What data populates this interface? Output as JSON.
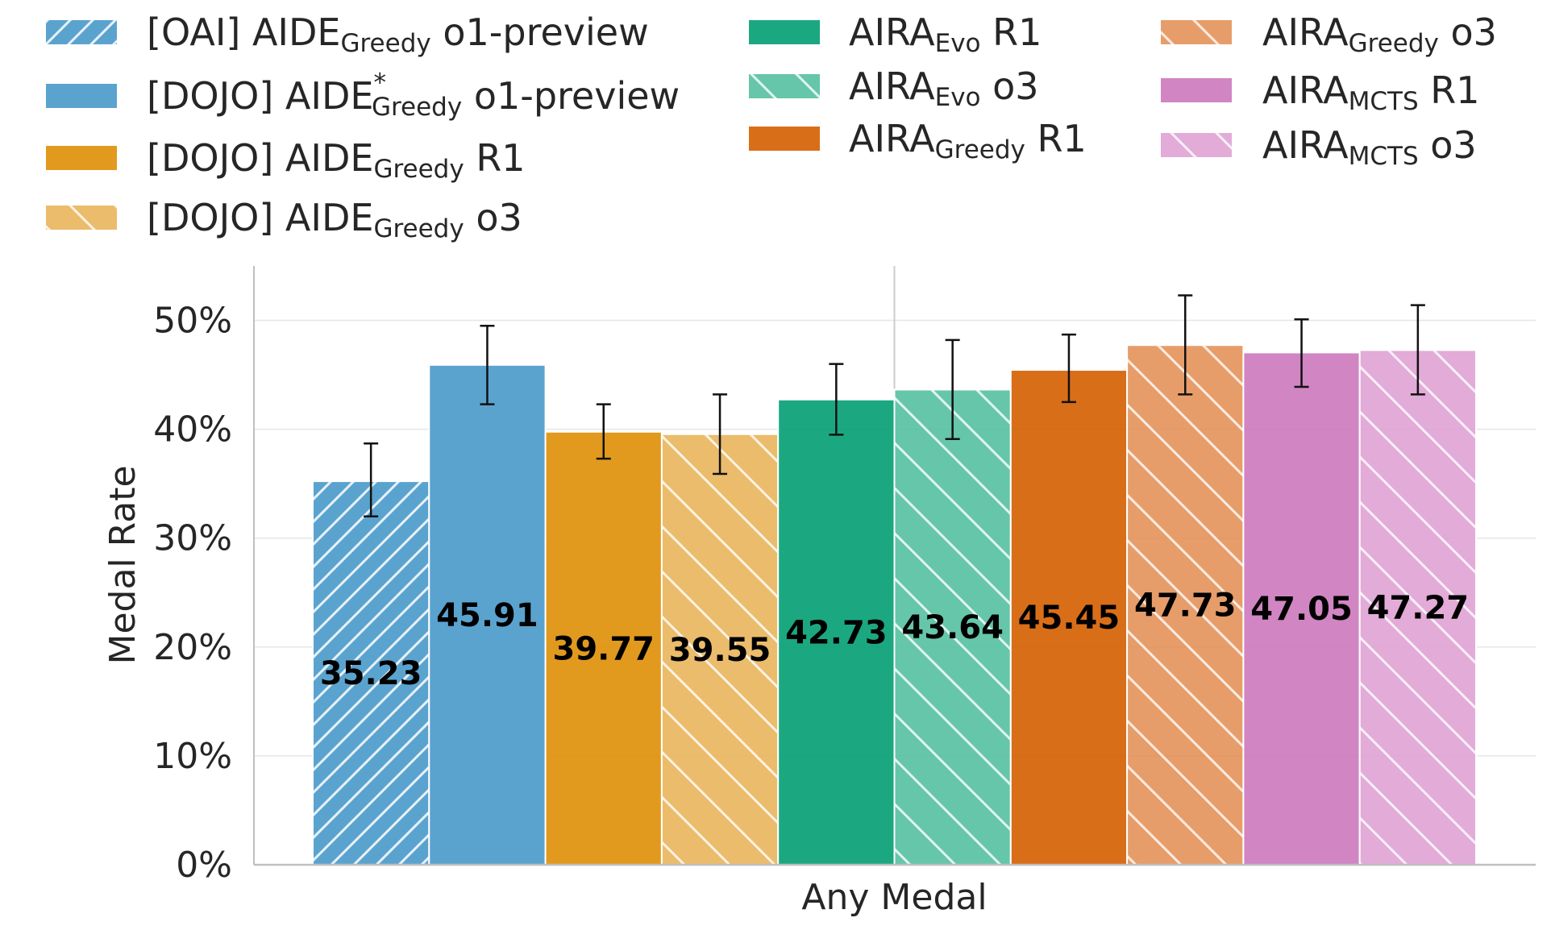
{
  "chart_data": {
    "type": "bar",
    "categories": [
      "Any Medal"
    ],
    "xlabel": "Any Medal",
    "ylabel": "Medal Rate",
    "ylim": [
      0,
      55
    ],
    "yticks": [
      0,
      10,
      20,
      30,
      40,
      50
    ],
    "ytick_suffix": "%",
    "grid": true,
    "legend_position": "top",
    "series": [
      {
        "name": "[OAI] AIDE Greedy o1-preview",
        "prefix": "[OAI] AIDE",
        "sub": "Greedy",
        "sup": "",
        "suffix": " o1-preview",
        "value": 35.23,
        "label": "35.23",
        "err_low": 32.0,
        "err_high": 38.7,
        "color": "#5ba3cf",
        "alpha": 1.0,
        "hatch": "fwd"
      },
      {
        "name": "[DOJO] AIDE* Greedy o1-preview",
        "prefix": "[DOJO] AIDE",
        "sub": "Greedy",
        "sup": "*",
        "suffix": " o1-preview",
        "value": 45.91,
        "label": "45.91",
        "err_low": 42.3,
        "err_high": 49.5,
        "color": "#5ba3cf",
        "alpha": 1.0,
        "hatch": "none"
      },
      {
        "name": "[DOJO] AIDE Greedy R1",
        "prefix": "[DOJO] AIDE",
        "sub": "Greedy",
        "sup": "",
        "suffix": " R1",
        "value": 39.77,
        "label": "39.77",
        "err_low": 37.3,
        "err_high": 42.3,
        "color": "#de8f05",
        "alpha": 0.9,
        "hatch": "none"
      },
      {
        "name": "[DOJO] AIDE Greedy o3",
        "prefix": "[DOJO] AIDE",
        "sub": "Greedy",
        "sup": "",
        "suffix": " o3",
        "value": 39.55,
        "label": "39.55",
        "err_low": 35.9,
        "err_high": 43.2,
        "color": "#e9b55c",
        "alpha": 0.9,
        "hatch": "back"
      },
      {
        "name": "AIRA Evo R1",
        "prefix": "AIRA",
        "sub": "Evo",
        "sup": "",
        "suffix": " R1",
        "value": 42.73,
        "label": "42.73",
        "err_low": 39.5,
        "err_high": 46.0,
        "color": "#029e73",
        "alpha": 0.9,
        "hatch": "none"
      },
      {
        "name": "AIRA Evo o3",
        "prefix": "AIRA",
        "sub": "Evo",
        "sup": "",
        "suffix": " o3",
        "value": 43.64,
        "label": "43.64",
        "err_low": 39.1,
        "err_high": 48.2,
        "color": "#55c0a0",
        "alpha": 0.9,
        "hatch": "back"
      },
      {
        "name": "AIRA Greedy R1",
        "prefix": "AIRA",
        "sub": "Greedy",
        "sup": "",
        "suffix": " R1",
        "value": 45.45,
        "label": "45.45",
        "err_low": 42.5,
        "err_high": 48.7,
        "color": "#d55e00",
        "alpha": 0.9,
        "hatch": "none"
      },
      {
        "name": "AIRA Greedy o3",
        "prefix": "AIRA",
        "sub": "Greedy",
        "sup": "",
        "suffix": " o3",
        "value": 47.73,
        "label": "47.73",
        "err_low": 43.2,
        "err_high": 52.3,
        "color": "#e38c50",
        "alpha": 0.85,
        "hatch": "back"
      },
      {
        "name": "AIRA MCTS R1",
        "prefix": "AIRA",
        "sub": "MCTS",
        "sup": "",
        "suffix": " R1",
        "value": 47.05,
        "label": "47.05",
        "err_low": 43.9,
        "err_high": 50.1,
        "color": "#cc78bc",
        "alpha": 0.9,
        "hatch": "none"
      },
      {
        "name": "AIRA MCTS o3",
        "prefix": "AIRA",
        "sub": "MCTS",
        "sup": "",
        "suffix": " o3",
        "value": 47.27,
        "label": "47.27",
        "err_low": 43.2,
        "err_high": 51.4,
        "color": "#dfa2d4",
        "alpha": 0.9,
        "hatch": "back"
      }
    ]
  }
}
